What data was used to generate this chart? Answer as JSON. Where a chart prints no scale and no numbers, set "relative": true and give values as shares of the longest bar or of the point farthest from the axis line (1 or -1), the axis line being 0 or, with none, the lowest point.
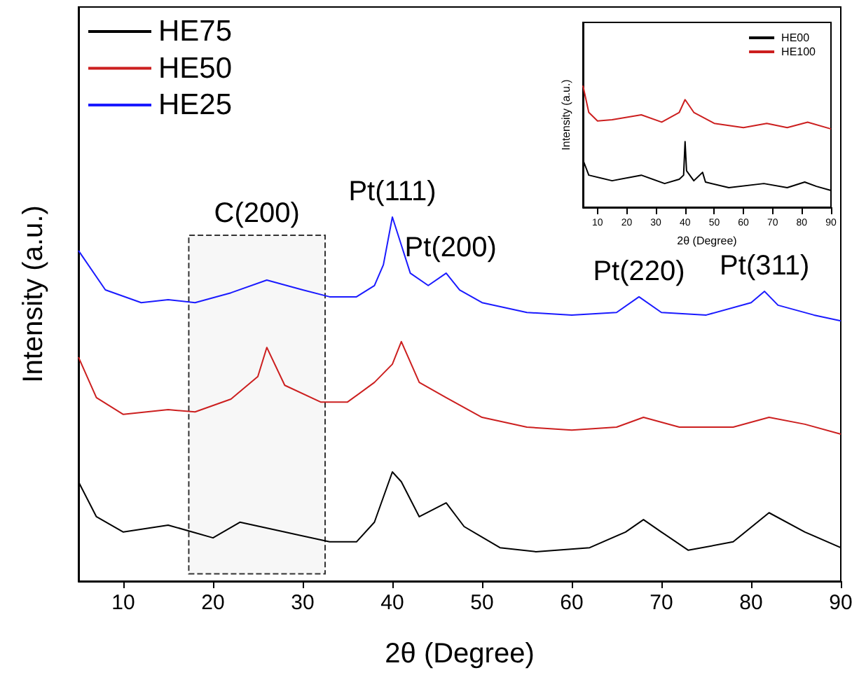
{
  "chart_data": [
    {
      "type": "line",
      "xlabel": "2θ (Degree)",
      "ylabel": "Intensity (a.u.)",
      "relative": true,
      "xlim": [
        5,
        90
      ],
      "xticks": [
        10,
        20,
        30,
        40,
        50,
        60,
        70,
        80,
        90
      ],
      "grid": false,
      "legend": "top left",
      "marker": "none",
      "line_style": "solid",
      "series": [
        {
          "name": "HE75",
          "color": "#000000",
          "x": [
            5,
            7,
            10,
            15,
            20,
            23,
            28,
            33,
            36,
            38,
            40,
            41,
            43,
            46,
            48,
            52,
            56,
            62,
            66,
            68,
            70,
            73,
            78,
            82,
            86,
            90
          ],
          "values": [
            0.273,
            0.177,
            0.135,
            0.154,
            0.119,
            0.162,
            0.135,
            0.108,
            0.108,
            0.162,
            0.3,
            0.273,
            0.177,
            0.215,
            0.15,
            0.092,
            0.081,
            0.092,
            0.135,
            0.169,
            0.135,
            0.085,
            0.108,
            0.188,
            0.135,
            0.092
          ]
        },
        {
          "name": "HE50",
          "color": "#cc1f1f",
          "x": [
            5,
            7,
            10,
            15,
            18,
            22,
            25,
            26,
            28,
            32,
            35,
            38,
            40,
            41,
            43,
            46,
            50,
            55,
            60,
            65,
            68,
            72,
            78,
            82,
            86,
            90
          ],
          "values": [
            0.615,
            0.504,
            0.458,
            0.471,
            0.465,
            0.5,
            0.562,
            0.642,
            0.538,
            0.492,
            0.492,
            0.546,
            0.596,
            0.658,
            0.546,
            0.504,
            0.45,
            0.423,
            0.415,
            0.423,
            0.45,
            0.423,
            0.423,
            0.45,
            0.431,
            0.404
          ]
        },
        {
          "name": "HE25",
          "color": "#1a1aff",
          "x": [
            5,
            8,
            12,
            15,
            18,
            22,
            26,
            30,
            33,
            36,
            38,
            39,
            40,
            41,
            42,
            44,
            46,
            47.5,
            50,
            55,
            60,
            65,
            67.5,
            70,
            75,
            80,
            81.5,
            83,
            87,
            90
          ],
          "values": [
            0.908,
            0.8,
            0.765,
            0.773,
            0.765,
            0.792,
            0.827,
            0.8,
            0.781,
            0.781,
            0.812,
            0.869,
            1.0,
            0.923,
            0.846,
            0.812,
            0.846,
            0.8,
            0.765,
            0.738,
            0.731,
            0.738,
            0.781,
            0.738,
            0.731,
            0.765,
            0.796,
            0.758,
            0.731,
            0.715
          ]
        }
      ],
      "bands": [
        {
          "axis": "x",
          "from": 17.3,
          "to": 32.5,
          "label": "C(200)"
        }
      ],
      "annotations": [
        {
          "text": "Pt(111)",
          "x": 40,
          "y": 1.0
        },
        {
          "text": "Pt(200)",
          "x": 46.5,
          "y": 0.846
        },
        {
          "text": "Pt(220)",
          "x": 67.5,
          "y": 0.781
        },
        {
          "text": "Pt(311)",
          "x": 81.5,
          "y": 0.796
        }
      ]
    },
    {
      "type": "line",
      "xlabel": "2θ (Degree)",
      "ylabel": "Intensity (a.u.)",
      "relative": true,
      "xlim": [
        5,
        90
      ],
      "xticks": [
        10,
        20,
        30,
        40,
        50,
        60,
        70,
        80,
        90
      ],
      "grid": false,
      "legend": "top right",
      "marker": "none",
      "line_style": "solid",
      "series": [
        {
          "name": "HE00",
          "color": "#000000",
          "x": [
            5,
            7,
            15,
            25,
            33,
            38,
            39.5,
            40,
            40.5,
            43,
            46,
            47,
            55,
            67,
            75,
            81,
            85,
            90
          ],
          "values": [
            0.39,
            0.264,
            0.218,
            0.264,
            0.195,
            0.23,
            0.264,
            0.54,
            0.3,
            0.218,
            0.287,
            0.207,
            0.161,
            0.195,
            0.161,
            0.207,
            0.172,
            0.138
          ]
        },
        {
          "name": "HE100",
          "color": "#cc1f1f",
          "x": [
            5,
            7,
            10,
            15,
            25,
            32,
            38,
            40,
            43,
            50,
            60,
            68,
            75,
            82,
            90
          ],
          "values": [
            1.0,
            0.78,
            0.71,
            0.72,
            0.76,
            0.7,
            0.78,
            0.885,
            0.78,
            0.69,
            0.655,
            0.69,
            0.655,
            0.7,
            0.644
          ]
        }
      ]
    }
  ]
}
